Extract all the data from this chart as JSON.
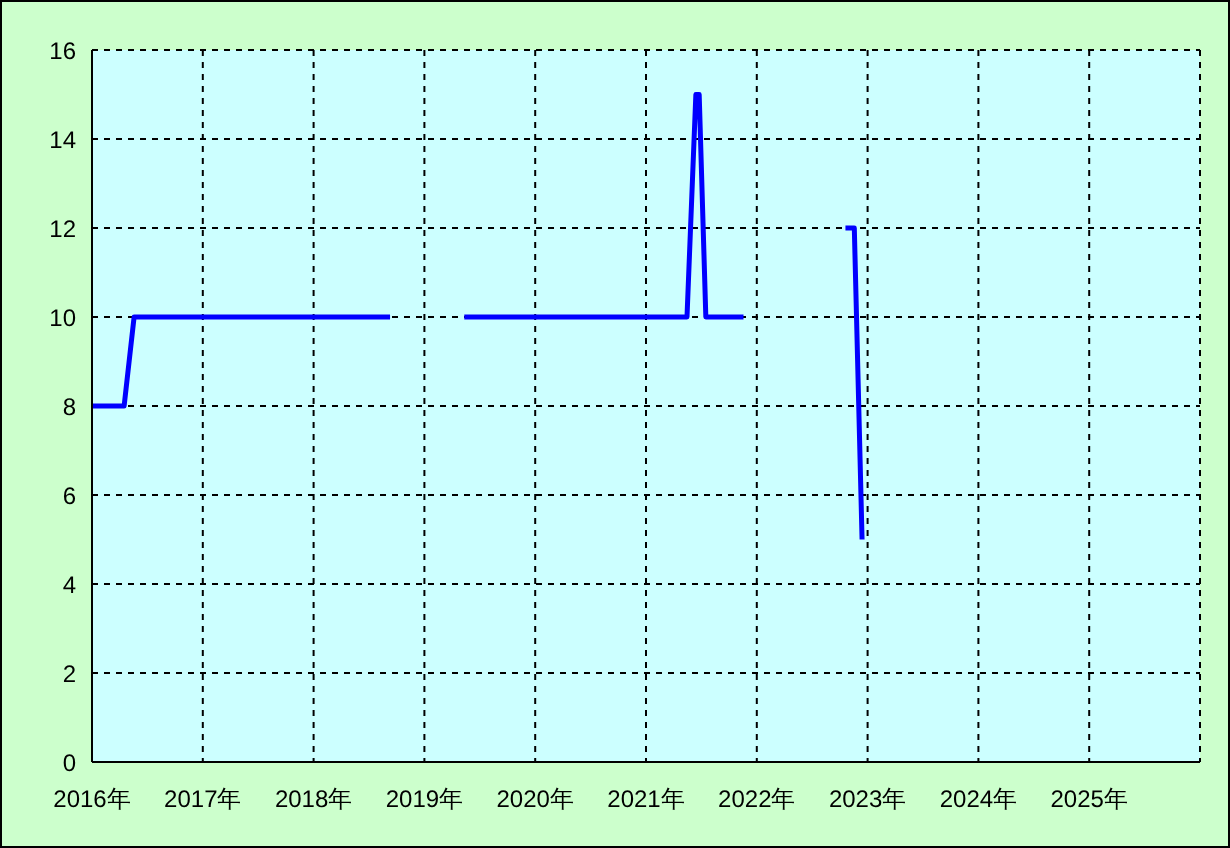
{
  "chart_data": {
    "type": "line",
    "x": [
      2016.0,
      2016.29,
      2016.38,
      2018.69,
      2019.0,
      2019.36,
      2021.37,
      2021.45,
      2021.48,
      2021.54,
      2021.88,
      2022.3,
      2022.8,
      2022.88,
      2022.95
    ],
    "series": [
      {
        "color": "#0000ff",
        "values": [
          8,
          8,
          10,
          10,
          null,
          10,
          10,
          15,
          15,
          10,
          10,
          null,
          12,
          12,
          5
        ]
      }
    ],
    "xlim": [
      2016,
      2026
    ],
    "xticks": [
      {
        "value": 2016,
        "label": "2016年"
      },
      {
        "value": 2017,
        "label": "2017年"
      },
      {
        "value": 2018,
        "label": "2018年"
      },
      {
        "value": 2019,
        "label": "2019年"
      },
      {
        "value": 2020,
        "label": "2020年"
      },
      {
        "value": 2021,
        "label": "2021年"
      },
      {
        "value": 2022,
        "label": "2022年"
      },
      {
        "value": 2023,
        "label": "2023年"
      },
      {
        "value": 2024,
        "label": "2024年"
      },
      {
        "value": 2025,
        "label": "2025年"
      },
      {
        "value": 2026,
        "label": null
      }
    ],
    "ylim": [
      0,
      16
    ],
    "yticks": [
      0,
      2,
      4,
      6,
      8,
      10,
      12,
      14,
      16
    ],
    "grid": true,
    "legend": false,
    "marker": "none",
    "line_style": "solid"
  }
}
